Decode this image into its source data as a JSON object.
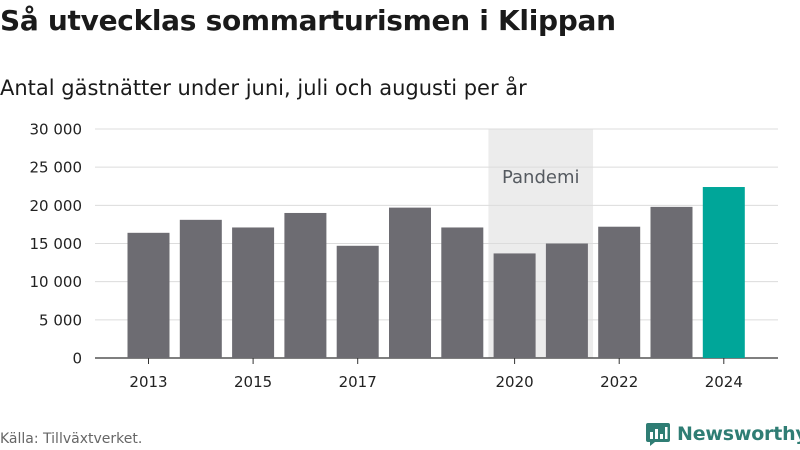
{
  "chart_data": {
    "type": "bar",
    "title": "Så utvecklas sommarturismen i Klippan",
    "subtitle": "Antal gästnätter under juni, juli och augusti per år",
    "x": [
      2013,
      2014,
      2015,
      2016,
      2017,
      2018,
      2019,
      2020,
      2021,
      2022,
      2023,
      2024
    ],
    "x_tick_labels": [
      "2013",
      "",
      "2015",
      "",
      "2017",
      "",
      "",
      "2020",
      "",
      "2022",
      "",
      "2024"
    ],
    "values": [
      16400,
      18100,
      17100,
      19000,
      14700,
      19700,
      17100,
      13700,
      15000,
      17200,
      19800,
      22400
    ],
    "highlight": {
      "x": 2024,
      "color": "#00a699"
    },
    "bar_color": "#6d6c72",
    "ylim": [
      0,
      30000
    ],
    "y_ticks": [
      0,
      5000,
      10000,
      15000,
      20000,
      25000,
      30000
    ],
    "y_tick_labels": [
      "0",
      "5 000",
      "10 000",
      "15 000",
      "20 000",
      "25 000",
      "30 000"
    ],
    "grid": true,
    "annotations": [
      {
        "label": "Pandemi",
        "x_start": 2020,
        "x_end": 2021,
        "shade_color": "#ececec"
      }
    ]
  },
  "source": "Källa: Tillväxtverket.",
  "brand": {
    "name": "Newsworthy",
    "logo_icon": "newsworthy-logo-icon",
    "color": "#2f7d74"
  }
}
